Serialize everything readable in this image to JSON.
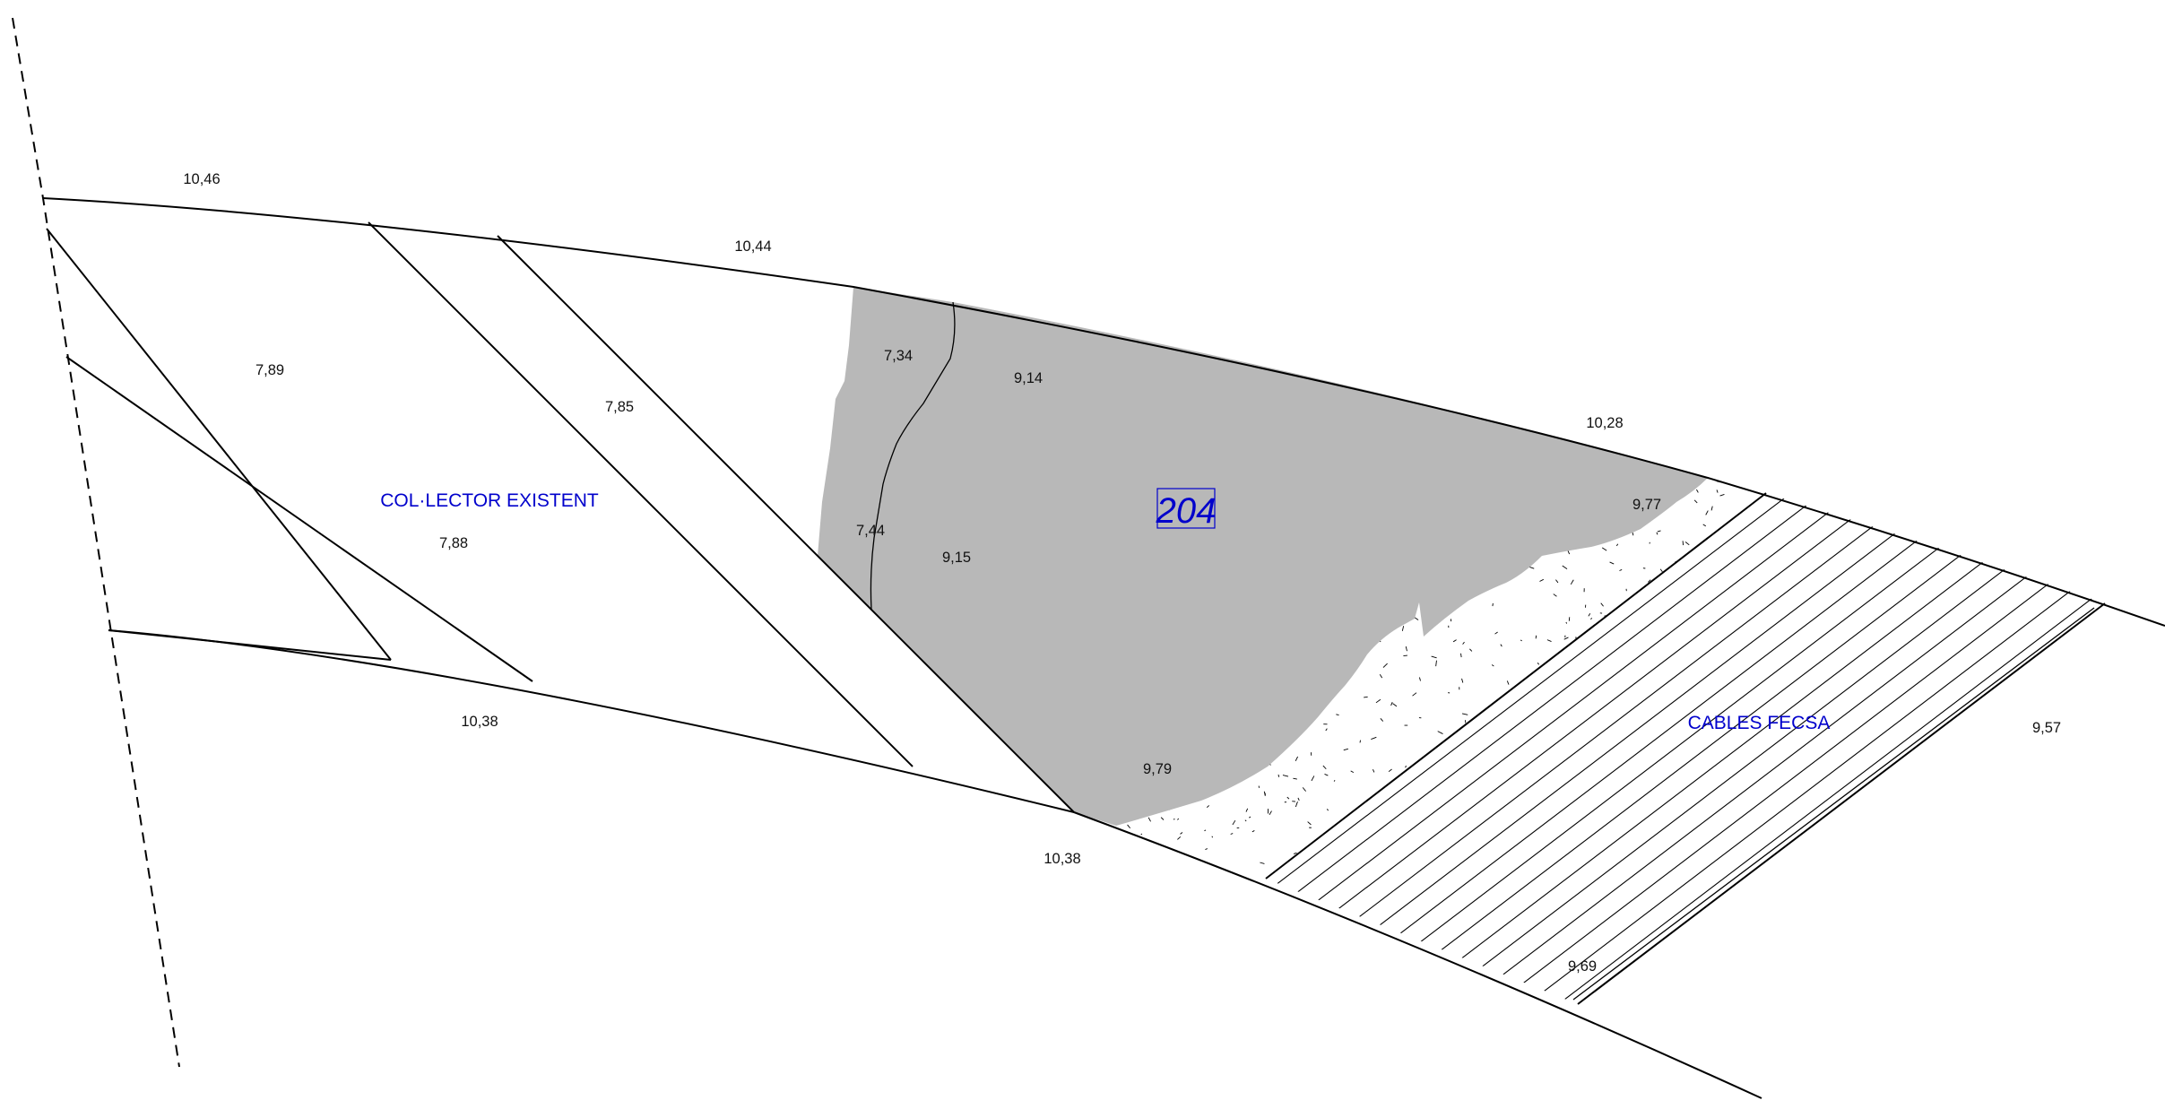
{
  "drawing": {
    "lot_number": "204",
    "labels": {
      "collector": "COL·LECTOR EXISTENT",
      "cables": "CABLES FECSA"
    },
    "elevations": {
      "e1046": "10,46",
      "e1044": "10,44",
      "e1028": "10,28",
      "e789": "7,89",
      "e785": "7,85",
      "e788": "7,88",
      "e734": "7,34",
      "e914": "9,14",
      "e744": "7,44",
      "e915": "9,15",
      "e977": "9,77",
      "e979": "9,79",
      "e1038a": "10,38",
      "e1038b": "10,38",
      "e969": "9,69",
      "e957": "9,57"
    },
    "colors": {
      "paved_area": "#b8b8b8",
      "annotation_blue": "#0000cc",
      "linework": "#000000"
    }
  }
}
